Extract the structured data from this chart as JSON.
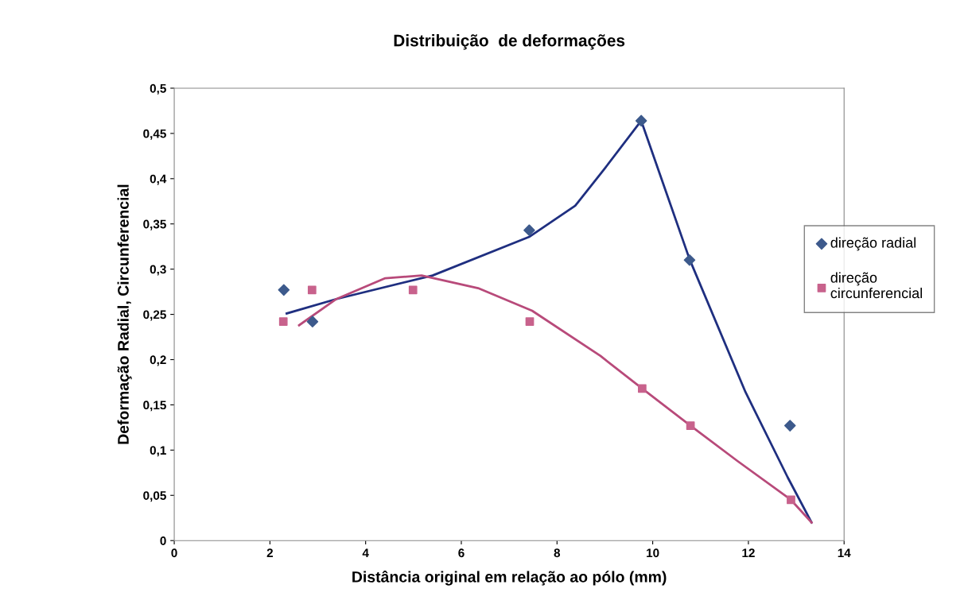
{
  "chart_data": {
    "type": "scatter",
    "title": "Distribuição  de deformações",
    "xlabel": "Distância original em relação ao pólo (mm)",
    "ylabel": "Deformação Radial, Circunferencial",
    "xlim": [
      0,
      14
    ],
    "xticks": [
      0,
      2,
      4,
      6,
      8,
      10,
      12,
      14
    ],
    "ylim": [
      0,
      0.5
    ],
    "yticks": [
      0,
      {
        "value": 0.05,
        "label": "0,05"
      },
      {
        "value": 0.1,
        "label": "0,1"
      },
      {
        "value": 0.15,
        "label": "0,15"
      },
      {
        "value": 0.2,
        "label": "0,2"
      },
      {
        "value": 0.25,
        "label": "0,25"
      },
      {
        "value": 0.3,
        "label": "0,3"
      },
      {
        "value": 0.35,
        "label": "0,35"
      },
      {
        "value": 0.4,
        "label": "0,4"
      },
      {
        "value": 0.45,
        "label": "0,45"
      },
      {
        "value": 0.5,
        "label": "0,5"
      }
    ],
    "grid": false,
    "legend": "right",
    "series": [
      {
        "type": "line",
        "marker": "none",
        "color": "#1f2f80",
        "x": [
          2.35,
          3.39,
          5.4,
          7.43,
          8.38,
          8.98,
          9.76,
          10.77,
          11.94,
          12.82,
          13.32
        ],
        "values": [
          0.251,
          0.267,
          0.293,
          0.336,
          0.37,
          0.41,
          0.464,
          0.311,
          0.164,
          0.07,
          0.02
        ]
      },
      {
        "type": "line",
        "marker": "none",
        "color": "#b84a7a",
        "x": [
          2.61,
          3.39,
          4.41,
          5.17,
          6.35,
          7.48,
          8.91,
          9.78,
          10.79,
          11.77,
          12.89,
          13.32
        ],
        "values": [
          0.238,
          0.267,
          0.29,
          0.293,
          0.279,
          0.254,
          0.204,
          0.168,
          0.127,
          0.088,
          0.045,
          0.02
        ]
      },
      {
        "name": "direção radial",
        "marker": "diamond",
        "color": "#3d5a8c",
        "x": [
          2.29,
          2.89,
          7.42,
          9.76,
          10.77,
          12.87
        ],
        "values": [
          0.277,
          0.242,
          0.343,
          0.464,
          0.31,
          0.127
        ]
      },
      {
        "name": "direção\ncircunferencial",
        "marker": "square",
        "color": "#c8628c",
        "x": [
          2.28,
          2.88,
          4.99,
          7.43,
          9.78,
          10.79,
          12.89
        ],
        "values": [
          0.242,
          0.277,
          0.277,
          0.242,
          0.168,
          0.127,
          0.045
        ]
      }
    ]
  }
}
